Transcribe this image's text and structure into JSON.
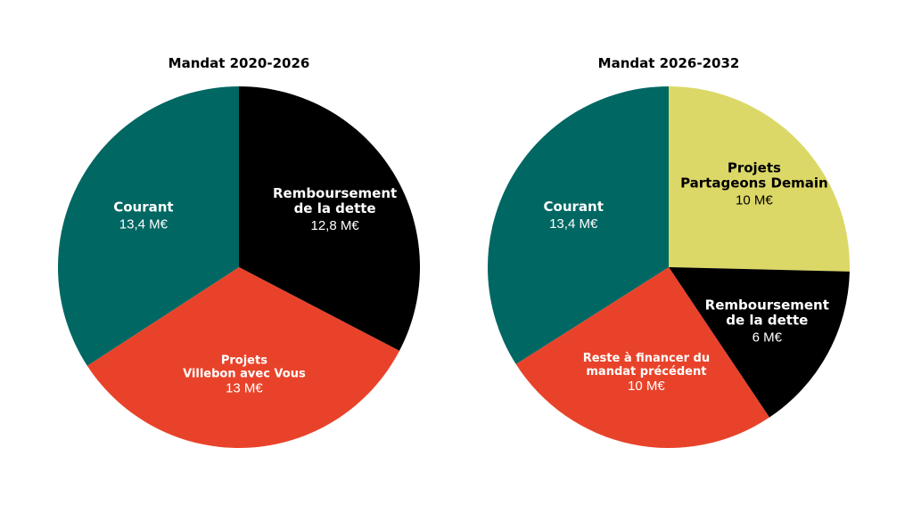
{
  "chart_data": [
    {
      "type": "pie",
      "title": "Mandat 2020-2026",
      "start_angle_deg": 0,
      "direction": "clockwise",
      "slices": [
        {
          "name_lines": [
            "Remboursement",
            "de la dette"
          ],
          "value_label": "12,8 M€",
          "value": 12.8,
          "color": "#000000",
          "text_color": "#ffffff"
        },
        {
          "name_lines": [
            "Projets",
            "Villebon avec Vous"
          ],
          "value_label": "13 M€",
          "value": 13,
          "color": "#e8432a",
          "text_color": "#ffffff"
        },
        {
          "name_lines": [
            "Courant"
          ],
          "value_label": "13,4 M€",
          "value": 13.4,
          "color": "#006763",
          "text_color": "#ffffff"
        }
      ]
    },
    {
      "type": "pie",
      "title": "Mandat 2026-2032",
      "start_angle_deg": 0,
      "direction": "clockwise",
      "slices": [
        {
          "name_lines": [
            "Projets",
            "Partageons Demain"
          ],
          "value_label": "10 M€",
          "value": 10,
          "color": "#dcd867",
          "text_color": "#000000"
        },
        {
          "name_lines": [
            "Remboursement",
            "de la dette"
          ],
          "value_label": "6 M€",
          "value": 6,
          "color": "#000000",
          "text_color": "#ffffff"
        },
        {
          "name_lines": [
            "Reste à financer du",
            "mandat précédent"
          ],
          "value_label": "10 M€",
          "value": 10,
          "color": "#e8432a",
          "text_color": "#ffffff"
        },
        {
          "name_lines": [
            "Courant"
          ],
          "value_label": "13,4 M€",
          "value": 13.4,
          "color": "#006763",
          "text_color": "#ffffff"
        }
      ]
    }
  ]
}
